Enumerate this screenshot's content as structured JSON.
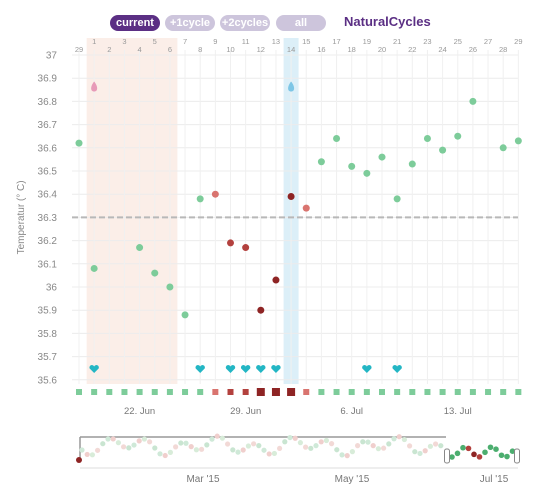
{
  "toolbar": {
    "tabs": [
      {
        "label": "current",
        "active": true
      },
      {
        "label": "+1cycle",
        "active": false
      },
      {
        "label": "+2cycles",
        "active": false
      },
      {
        "label": "all",
        "active": false
      }
    ],
    "brand": "NaturalCycles"
  },
  "colors": {
    "brand": "#5b2f84",
    "green": "#7dcc9a",
    "light_red": "#d9746f",
    "red": "#b3413e",
    "dark_red": "#8e2424",
    "teal": "#23b6c4",
    "period_band": "#fbeee8",
    "ovulation_band": "#dceff8",
    "coverline": "#b8b8b8"
  },
  "chart_data": {
    "type": "scatter",
    "ylabel": "Temperatur (° C)",
    "ylim": [
      35.55,
      37.05
    ],
    "yticks": [
      "37",
      "36.9",
      "36.8",
      "36.7",
      "36.6",
      "36.5",
      "36.4",
      "36.3",
      "36.2",
      "36.1",
      "36",
      "35.9",
      "35.8",
      "35.7",
      "35.6"
    ],
    "coverline": 36.3,
    "day_numbers": [
      "29",
      "1",
      "2",
      "3",
      "4",
      "5",
      "6",
      "7",
      "8",
      "9",
      "10",
      "11",
      "12",
      "13",
      "14",
      "15",
      "16",
      "17",
      "18",
      "19",
      "20",
      "21",
      "22",
      "23",
      "24",
      "25",
      "26",
      "27",
      "28",
      "29"
    ],
    "date_labels": [
      {
        "day_index": 4,
        "label": "22. Jun"
      },
      {
        "day_index": 11,
        "label": "29. Jun"
      },
      {
        "day_index": 18,
        "label": "6. Jul"
      },
      {
        "day_index": 25,
        "label": "13. Jul"
      }
    ],
    "period_days": [
      1,
      6
    ],
    "ovulation_day": 14,
    "period_drop_day": 1,
    "ovulation_drop_day": 14,
    "points": [
      {
        "day": 0,
        "temp": 36.62,
        "status": "green"
      },
      {
        "day": 1,
        "temp": 36.08,
        "status": "green"
      },
      {
        "day": 4,
        "temp": 36.17,
        "status": "green"
      },
      {
        "day": 5,
        "temp": 36.06,
        "status": "green"
      },
      {
        "day": 6,
        "temp": 36.0,
        "status": "green"
      },
      {
        "day": 7,
        "temp": 35.88,
        "status": "green"
      },
      {
        "day": 8,
        "temp": 36.38,
        "status": "green"
      },
      {
        "day": 9,
        "temp": 36.4,
        "status": "light_red"
      },
      {
        "day": 10,
        "temp": 36.19,
        "status": "red"
      },
      {
        "day": 11,
        "temp": 36.17,
        "status": "red"
      },
      {
        "day": 12,
        "temp": 35.9,
        "status": "dark_red"
      },
      {
        "day": 13,
        "temp": 36.03,
        "status": "dark_red"
      },
      {
        "day": 14,
        "temp": 36.39,
        "status": "dark_red"
      },
      {
        "day": 15,
        "temp": 36.34,
        "status": "light_red"
      },
      {
        "day": 16,
        "temp": 36.54,
        "status": "green"
      },
      {
        "day": 17,
        "temp": 36.64,
        "status": "green"
      },
      {
        "day": 18,
        "temp": 36.52,
        "status": "green"
      },
      {
        "day": 19,
        "temp": 36.49,
        "status": "green"
      },
      {
        "day": 20,
        "temp": 36.56,
        "status": "green"
      },
      {
        "day": 21,
        "temp": 36.38,
        "status": "green"
      },
      {
        "day": 22,
        "temp": 36.53,
        "status": "green"
      },
      {
        "day": 23,
        "temp": 36.64,
        "status": "green"
      },
      {
        "day": 24,
        "temp": 36.59,
        "status": "green"
      },
      {
        "day": 25,
        "temp": 36.65,
        "status": "green"
      },
      {
        "day": 26,
        "temp": 36.8,
        "status": "green"
      },
      {
        "day": 28,
        "temp": 36.6,
        "status": "green"
      },
      {
        "day": 29,
        "temp": 36.63,
        "status": "green"
      }
    ],
    "hearts": [
      1,
      8,
      10,
      11,
      12,
      13,
      19,
      21
    ],
    "day_status": [
      "green",
      "green",
      "green",
      "green",
      "green",
      "green",
      "green",
      "green",
      "green",
      "light_red",
      "red",
      "red",
      "dark_red",
      "dark_red",
      "dark_red",
      "light_red",
      "green",
      "green",
      "green",
      "green",
      "green",
      "green",
      "green",
      "green",
      "green",
      "green",
      "green",
      "green",
      "green",
      "green"
    ]
  },
  "overview": {
    "month_labels": [
      "Mar '15",
      "May '15",
      "Jul '15"
    ]
  }
}
